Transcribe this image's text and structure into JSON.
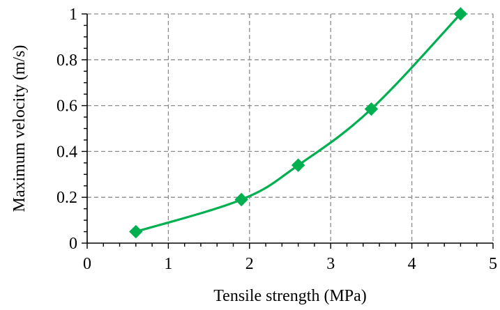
{
  "chart_data": {
    "type": "line",
    "title": "",
    "xlabel": "Tensile strength (MPa)",
    "ylabel": "Maximum velocity (m/s)",
    "xlim": [
      0,
      5
    ],
    "ylim": [
      0,
      1
    ],
    "xticks": [
      "0",
      "1",
      "2",
      "3",
      "4",
      "5"
    ],
    "yticks": [
      "0",
      "0.2",
      "0.4",
      "0.6",
      "0.8",
      "1"
    ],
    "grid": true,
    "grid_style": "dashed",
    "legend": "none",
    "series": [
      {
        "x": [
          0.6,
          1.9,
          2.6,
          3.5,
          4.6
        ],
        "y": [
          0.05,
          0.19,
          0.34,
          0.585,
          1.0
        ],
        "color": "#00b050",
        "marker": "diamond",
        "line": "smoothed"
      }
    ]
  }
}
